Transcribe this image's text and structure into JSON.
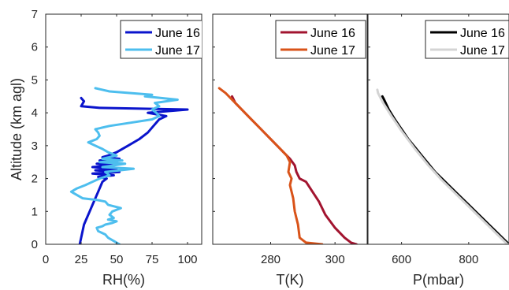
{
  "colors": {
    "rh_june16": "#0a14cc",
    "rh_june17": "#4dbeee",
    "t_june16": "#a2142f",
    "t_june17": "#d95319",
    "p_june16": "#000000",
    "p_june17": "#d4d4d4"
  },
  "chart_data": [
    {
      "type": "line",
      "xlabel": "RH(%)",
      "ylabel": "Altitude (km agl)",
      "xlim": [
        0,
        110
      ],
      "ylim": [
        0,
        7
      ],
      "xticks": [
        "0",
        "25",
        "50",
        "75",
        "100"
      ],
      "yticks": [
        "0",
        "1",
        "2",
        "3",
        "4",
        "5",
        "6",
        "7"
      ],
      "grid": false,
      "legend_position": "top-right",
      "series": [
        {
          "name": "June 16",
          "points": [
            [
              24,
              0.0
            ],
            [
              25,
              0.2
            ],
            [
              26,
              0.4
            ],
            [
              27,
              0.6
            ],
            [
              29,
              0.8
            ],
            [
              31,
              1.0
            ],
            [
              33,
              1.2
            ],
            [
              35,
              1.4
            ],
            [
              37,
              1.6
            ],
            [
              39,
              1.8
            ],
            [
              40,
              1.9
            ],
            [
              43,
              2.0
            ],
            [
              37,
              2.05
            ],
            [
              48,
              2.1
            ],
            [
              33,
              2.15
            ],
            [
              52,
              2.2
            ],
            [
              35,
              2.25
            ],
            [
              50,
              2.3
            ],
            [
              33,
              2.35
            ],
            [
              48,
              2.4
            ],
            [
              36,
              2.45
            ],
            [
              50,
              2.5
            ],
            [
              38,
              2.55
            ],
            [
              52,
              2.6
            ],
            [
              40,
              2.65
            ],
            [
              44,
              2.7
            ],
            [
              50,
              2.8
            ],
            [
              58,
              3.0
            ],
            [
              66,
              3.2
            ],
            [
              72,
              3.4
            ],
            [
              76,
              3.6
            ],
            [
              80,
              3.8
            ],
            [
              85,
              3.9
            ],
            [
              72,
              4.0
            ],
            [
              100,
              4.1
            ],
            [
              38,
              4.15
            ],
            [
              25,
              4.2
            ],
            [
              27,
              4.35
            ],
            [
              25,
              4.45
            ]
          ]
        },
        {
          "name": "June 17",
          "points": [
            [
              52,
              0.0
            ],
            [
              48,
              0.1
            ],
            [
              44,
              0.2
            ],
            [
              42,
              0.3
            ],
            [
              37,
              0.4
            ],
            [
              36,
              0.5
            ],
            [
              40,
              0.55
            ],
            [
              42,
              0.6
            ],
            [
              47,
              0.65
            ],
            [
              50,
              0.7
            ],
            [
              44,
              0.75
            ],
            [
              48,
              0.8
            ],
            [
              45,
              0.9
            ],
            [
              47,
              1.0
            ],
            [
              53,
              1.1
            ],
            [
              44,
              1.2
            ],
            [
              42,
              1.3
            ],
            [
              36,
              1.35
            ],
            [
              26,
              1.4
            ],
            [
              22,
              1.5
            ],
            [
              18,
              1.6
            ],
            [
              22,
              1.7
            ],
            [
              28,
              1.8
            ],
            [
              33,
              1.9
            ],
            [
              38,
              2.0
            ],
            [
              45,
              2.1
            ],
            [
              42,
              2.2
            ],
            [
              62,
              2.3
            ],
            [
              40,
              2.35
            ],
            [
              56,
              2.45
            ],
            [
              38,
              2.5
            ],
            [
              54,
              2.55
            ],
            [
              40,
              2.6
            ],
            [
              50,
              2.7
            ],
            [
              44,
              2.8
            ],
            [
              40,
              2.9
            ],
            [
              35,
              3.0
            ],
            [
              30,
              3.1
            ],
            [
              36,
              3.2
            ],
            [
              38,
              3.3
            ],
            [
              37,
              3.4
            ],
            [
              35,
              3.5
            ],
            [
              45,
              3.6
            ],
            [
              60,
              3.7
            ],
            [
              75,
              3.8
            ],
            [
              80,
              3.9
            ],
            [
              78,
              4.0
            ],
            [
              75,
              4.1
            ],
            [
              80,
              4.2
            ],
            [
              77,
              4.3
            ],
            [
              93,
              4.4
            ],
            [
              70,
              4.5
            ],
            [
              75,
              4.55
            ],
            [
              45,
              4.65
            ],
            [
              35,
              4.75
            ]
          ]
        }
      ]
    },
    {
      "type": "line",
      "xlabel": "T(K)",
      "ylabel": "",
      "xlim": [
        262,
        310
      ],
      "ylim": [
        0,
        7
      ],
      "xticks": [
        "280",
        "300"
      ],
      "grid": false,
      "legend_position": "top-right",
      "series": [
        {
          "name": "June 16",
          "points": [
            [
              306.7,
              0.0
            ],
            [
              305,
              0.05
            ],
            [
              303,
              0.2
            ],
            [
              300,
              0.5
            ],
            [
              297,
              0.9
            ],
            [
              295,
              1.3
            ],
            [
              293,
              1.6
            ],
            [
              291,
              1.9
            ],
            [
              289,
              2.0
            ],
            [
              288,
              2.2
            ],
            [
              287.5,
              2.4
            ],
            [
              286,
              2.6
            ],
            [
              284,
              2.8
            ],
            [
              281,
              3.1
            ],
            [
              277,
              3.5
            ],
            [
              274,
              3.8
            ],
            [
              271,
              4.1
            ],
            [
              269,
              4.3
            ],
            [
              268,
              4.5
            ]
          ]
        },
        {
          "name": "June 17",
          "points": [
            [
              296,
              0.0
            ],
            [
              291,
              0.05
            ],
            [
              289,
              0.2
            ],
            [
              288.5,
              0.6
            ],
            [
              287.5,
              1.0
            ],
            [
              287,
              1.4
            ],
            [
              286,
              1.8
            ],
            [
              286.5,
              2.0
            ],
            [
              285.5,
              2.2
            ],
            [
              286,
              2.5
            ],
            [
              285,
              2.7
            ],
            [
              283,
              2.9
            ],
            [
              280,
              3.2
            ],
            [
              277,
              3.5
            ],
            [
              273,
              3.9
            ],
            [
              269,
              4.3
            ],
            [
              266,
              4.6
            ],
            [
              264,
              4.75
            ]
          ]
        }
      ]
    },
    {
      "type": "line",
      "xlabel": "P(mbar)",
      "ylabel": "",
      "xlim": [
        500,
        920
      ],
      "ylim": [
        0,
        7
      ],
      "xticks": [
        "600",
        "800"
      ],
      "grid": false,
      "legend_position": "top-right",
      "series": [
        {
          "name": "June 16",
          "points": [
            [
              915,
              0.05
            ],
            [
              900,
              0.2
            ],
            [
              880,
              0.4
            ],
            [
              860,
              0.6
            ],
            [
              840,
              0.8
            ],
            [
              820,
              1.0
            ],
            [
              800,
              1.2
            ],
            [
              780,
              1.4
            ],
            [
              760,
              1.6
            ],
            [
              740,
              1.8
            ],
            [
              720,
              2.0
            ],
            [
              700,
              2.2
            ],
            [
              680,
              2.45
            ],
            [
              660,
              2.7
            ],
            [
              640,
              2.95
            ],
            [
              620,
              3.2
            ],
            [
              600,
              3.5
            ],
            [
              580,
              3.8
            ],
            [
              562,
              4.1
            ],
            [
              548,
              4.4
            ],
            [
              543,
              4.5
            ]
          ]
        },
        {
          "name": "June 17",
          "points": [
            [
              915,
              0.0
            ],
            [
              880,
              0.35
            ],
            [
              840,
              0.75
            ],
            [
              800,
              1.15
            ],
            [
              760,
              1.55
            ],
            [
              720,
              1.95
            ],
            [
              680,
              2.4
            ],
            [
              640,
              2.9
            ],
            [
              600,
              3.45
            ],
            [
              570,
              3.9
            ],
            [
              545,
              4.3
            ],
            [
              530,
              4.6
            ],
            [
              528,
              4.7
            ]
          ]
        }
      ]
    }
  ]
}
